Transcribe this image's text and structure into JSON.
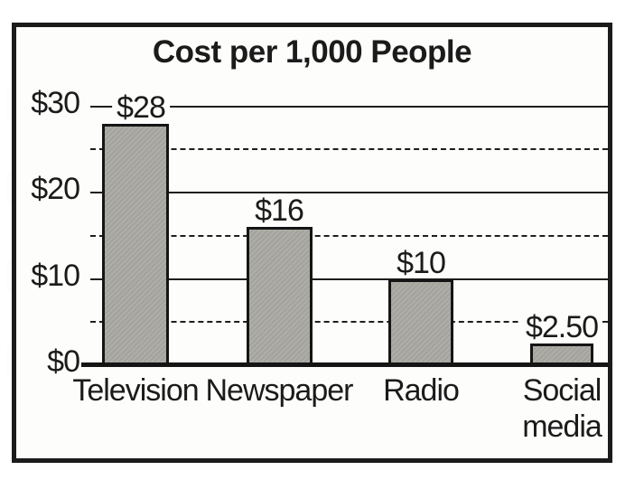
{
  "chart_data": {
    "type": "bar",
    "title": "Cost per 1,000 People",
    "categories": [
      "Television",
      "Newspaper",
      "Radio",
      "Social media"
    ],
    "category_label_lines": [
      [
        "Television"
      ],
      [
        "Newspaper"
      ],
      [
        "Radio"
      ],
      [
        "Social",
        "media"
      ]
    ],
    "values": [
      28,
      16,
      10,
      2.5
    ],
    "bar_value_labels": [
      "$28",
      "$16",
      "$10",
      "$2.50"
    ],
    "xlabel": "",
    "ylabel": "",
    "y_axis": {
      "range": [
        0,
        30
      ],
      "gridline_interval": 5,
      "ticks": [
        {
          "value": 0,
          "label": "$0"
        },
        {
          "value": 10,
          "label": "$10"
        },
        {
          "value": 20,
          "label": "$20"
        },
        {
          "value": 30,
          "label": "$30"
        }
      ]
    },
    "grid": "horizontal",
    "legend": "none",
    "colors": {
      "bar_fill": "#a9a8a2",
      "bar_border": "#151515",
      "line": "#1e1e1e",
      "text": "#1b1b1b",
      "background": "#fdfdfb"
    }
  }
}
